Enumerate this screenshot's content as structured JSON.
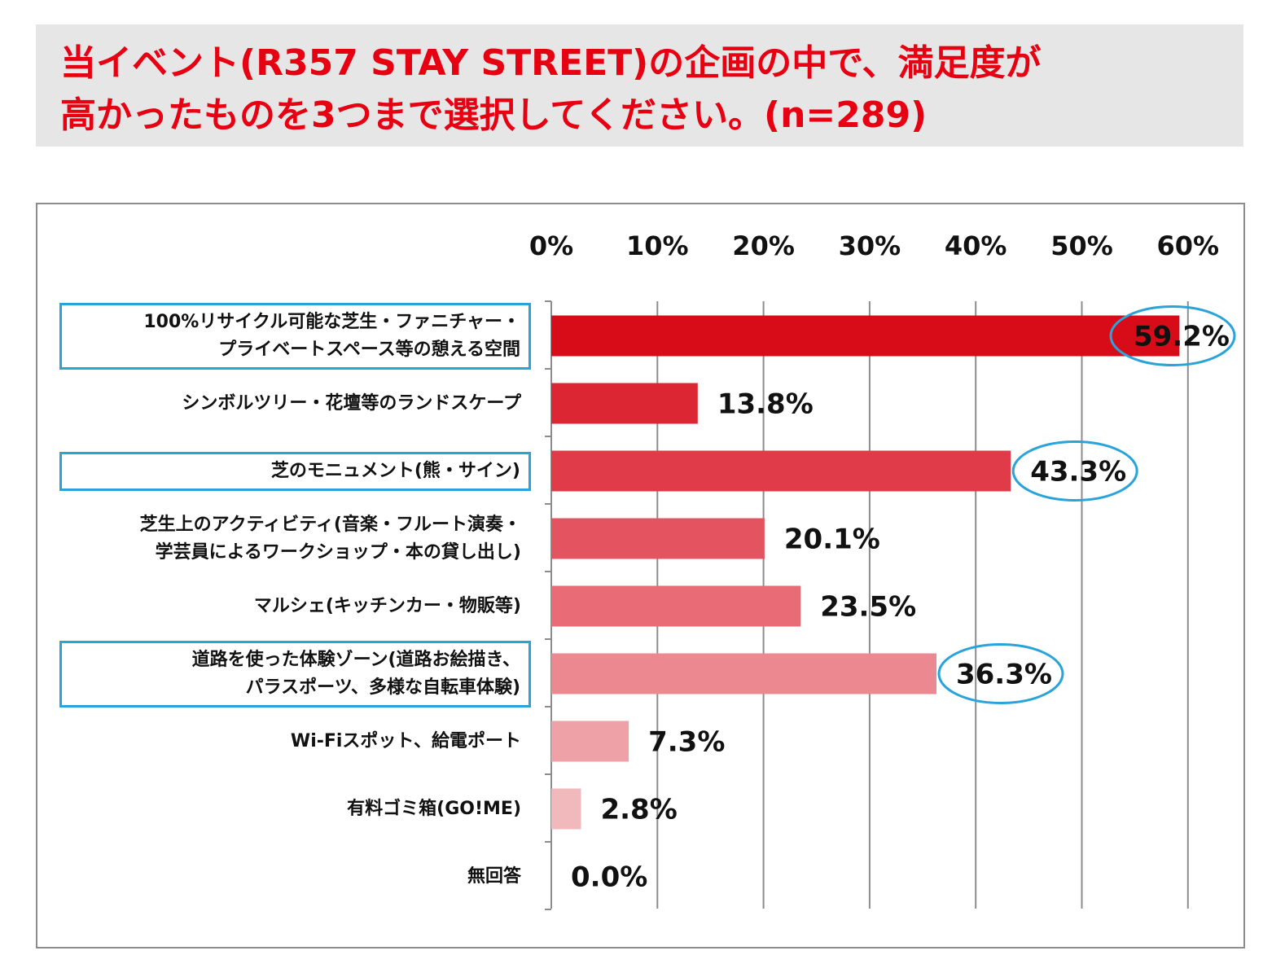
{
  "title": {
    "line1": "当イベント(R357 STAY STREET)の企画の中で、満足度が",
    "line2": "高かったものを3つまで選択してください。(n=289)"
  },
  "colors": {
    "title_text": "#e60012",
    "highlight_box": "#29a3d9",
    "highlight_circle": "#29a3d9"
  },
  "chart_data": {
    "type": "bar",
    "orientation": "horizontal",
    "xlim": [
      0,
      60
    ],
    "ticks": [
      "0%",
      "10%",
      "20%",
      "30%",
      "40%",
      "50%",
      "60%"
    ],
    "grid": true,
    "categories": [
      [
        "100%リサイクル可能な芝生・ファニチャー・",
        "プライベートスペース等の憩える空間"
      ],
      [
        "シンボルツリー・花壇等のランドスケープ"
      ],
      [
        "芝のモニュメント(熊・サイン)"
      ],
      [
        "芝生上のアクティビティ(音楽・フルート演奏・",
        "学芸員によるワークショップ・本の貸し出し)"
      ],
      [
        "マルシェ(キッチンカー・物販等)"
      ],
      [
        "道路を使った体験ゾーン(道路お絵描き、",
        "パラスポーツ、多様な自転車体験)"
      ],
      [
        "Wi-Fiスポット、給電ポート"
      ],
      [
        "有料ゴミ箱(GO!ME)"
      ],
      [
        "無回答"
      ]
    ],
    "values": [
      59.2,
      13.8,
      43.3,
      20.1,
      23.5,
      36.3,
      7.3,
      2.8,
      0.0
    ],
    "labels": [
      "59.2%",
      "13.8%",
      "43.3%",
      "20.1%",
      "23.5%",
      "36.3%",
      "7.3%",
      "2.8%",
      "0.0%"
    ],
    "bar_colors": [
      "#d70c18",
      "#dc2634",
      "#e03b48",
      "#e45360",
      "#e86b76",
      "#ec8890",
      "#eea1a6",
      "#f2b9bd",
      "#f5cdd0"
    ],
    "highlighted": [
      true,
      false,
      true,
      false,
      false,
      true,
      false,
      false,
      false
    ]
  }
}
